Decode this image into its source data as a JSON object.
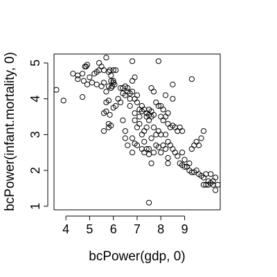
{
  "chart_data": {
    "type": "scatter",
    "title": "",
    "xlabel": "bcPower(gdp, 0)",
    "ylabel": "bcPower(infant.mortality, 0)",
    "xlim": [
      3.5,
      10.5
    ],
    "ylim": [
      0.9,
      5.25
    ],
    "x_ticks": [
      4,
      5,
      6,
      7,
      8,
      9
    ],
    "y_ticks": [
      1,
      2,
      3,
      4,
      5
    ],
    "grid": false,
    "legend": "none",
    "series": [
      {
        "marker": "open-circle",
        "color": "#000000",
        "points": [
          [
            3.6,
            4.25
          ],
          [
            3.9,
            3.95
          ],
          [
            4.3,
            4.7
          ],
          [
            4.5,
            4.65
          ],
          [
            4.5,
            4.55
          ],
          [
            4.7,
            4.7
          ],
          [
            4.8,
            4.9
          ],
          [
            4.75,
            4.5
          ],
          [
            4.85,
            4.9
          ],
          [
            4.9,
            4.95
          ],
          [
            4.7,
            4.05
          ],
          [
            4.9,
            4.4
          ],
          [
            5.0,
            4.6
          ],
          [
            5.1,
            4.45
          ],
          [
            5.2,
            4.7
          ],
          [
            5.3,
            4.75
          ],
          [
            5.4,
            4.8
          ],
          [
            5.4,
            5.0
          ],
          [
            5.5,
            4.9
          ],
          [
            5.6,
            4.8
          ],
          [
            5.7,
            5.15
          ],
          [
            5.8,
            4.75
          ],
          [
            5.85,
            4.8
          ],
          [
            5.9,
            4.65
          ],
          [
            5.9,
            4.5
          ],
          [
            6.0,
            4.5
          ],
          [
            6.0,
            4.45
          ],
          [
            5.95,
            4.35
          ],
          [
            5.9,
            4.3
          ],
          [
            6.0,
            4.8
          ],
          [
            6.1,
            4.8
          ],
          [
            6.05,
            4.4
          ],
          [
            5.3,
            4.4
          ],
          [
            5.5,
            4.35
          ],
          [
            5.6,
            4.45
          ],
          [
            5.8,
            4.35
          ],
          [
            5.7,
            4.2
          ],
          [
            5.6,
            3.6
          ],
          [
            5.7,
            3.65
          ],
          [
            5.85,
            3.55
          ],
          [
            5.8,
            3.3
          ],
          [
            5.6,
            3.1
          ],
          [
            5.8,
            3.2
          ],
          [
            5.9,
            3.25
          ],
          [
            5.7,
            3.9
          ],
          [
            5.8,
            3.95
          ],
          [
            6.0,
            3.75
          ],
          [
            6.1,
            3.8
          ],
          [
            6.3,
            4.3
          ],
          [
            6.5,
            4.35
          ],
          [
            6.4,
            4.15
          ],
          [
            6.5,
            4.1
          ],
          [
            6.6,
            4.2
          ],
          [
            6.7,
            4.15
          ],
          [
            6.8,
            4.2
          ],
          [
            6.7,
            4.0
          ],
          [
            6.9,
            4.0
          ],
          [
            6.8,
            4.5
          ],
          [
            6.9,
            4.6
          ],
          [
            7.0,
            4.1
          ],
          [
            7.0,
            3.9
          ],
          [
            7.1,
            3.7
          ],
          [
            7.2,
            3.8
          ],
          [
            7.2,
            3.65
          ],
          [
            7.3,
            3.7
          ],
          [
            7.4,
            3.6
          ],
          [
            7.5,
            3.7
          ],
          [
            7.6,
            3.65
          ],
          [
            7.7,
            3.55
          ],
          [
            7.6,
            3.5
          ],
          [
            7.5,
            3.55
          ],
          [
            7.4,
            3.5
          ],
          [
            7.6,
            4.3
          ],
          [
            7.7,
            4.2
          ],
          [
            7.8,
            3.9
          ],
          [
            7.9,
            3.8
          ],
          [
            8.0,
            3.8
          ],
          [
            8.1,
            3.7
          ],
          [
            8.0,
            3.5
          ],
          [
            8.1,
            3.4
          ],
          [
            8.2,
            3.5
          ],
          [
            8.3,
            3.3
          ],
          [
            8.4,
            3.2
          ],
          [
            8.5,
            3.25
          ],
          [
            8.6,
            3.2
          ],
          [
            8.7,
            3.1
          ],
          [
            8.8,
            3.2
          ],
          [
            8.9,
            3.1
          ],
          [
            8.5,
            4.4
          ],
          [
            8.5,
            4.0
          ],
          [
            8.2,
            3.0
          ],
          [
            8.3,
            2.8
          ],
          [
            8.4,
            2.7
          ],
          [
            8.5,
            2.6
          ],
          [
            8.6,
            2.5
          ],
          [
            8.7,
            2.4
          ],
          [
            8.8,
            2.2
          ],
          [
            8.9,
            2.15
          ],
          [
            9.0,
            2.1
          ],
          [
            9.1,
            2.1
          ],
          [
            9.2,
            2.0
          ],
          [
            9.3,
            1.95
          ],
          [
            9.4,
            1.95
          ],
          [
            9.5,
            2.0
          ],
          [
            9.6,
            1.9
          ],
          [
            9.7,
            1.85
          ],
          [
            9.8,
            1.8
          ],
          [
            9.9,
            1.9
          ],
          [
            10.0,
            1.7
          ],
          [
            10.1,
            1.65
          ],
          [
            10.2,
            1.6
          ],
          [
            10.3,
            1.8
          ],
          [
            10.1,
            1.9
          ],
          [
            10.0,
            1.6
          ],
          [
            9.8,
            1.6
          ],
          [
            9.9,
            1.6
          ],
          [
            10.3,
            1.45
          ],
          [
            10.4,
            1.6
          ],
          [
            10.2,
            1.7
          ],
          [
            9.0,
            2.3
          ],
          [
            9.2,
            2.2
          ],
          [
            9.3,
            2.6
          ],
          [
            9.4,
            2.7
          ],
          [
            9.5,
            2.8
          ],
          [
            9.6,
            2.7
          ],
          [
            9.7,
            2.9
          ],
          [
            9.8,
            3.1
          ],
          [
            9.3,
            4.55
          ],
          [
            8.9,
            2.5
          ],
          [
            6.4,
            3.4
          ],
          [
            6.5,
            3.1
          ],
          [
            6.5,
            2.9
          ],
          [
            6.6,
            2.7
          ],
          [
            6.8,
            2.9
          ],
          [
            6.9,
            2.75
          ],
          [
            7.0,
            3.2
          ],
          [
            7.1,
            3.3
          ],
          [
            7.2,
            3.0
          ],
          [
            7.3,
            3.1
          ],
          [
            7.3,
            2.8
          ],
          [
            7.4,
            2.6
          ],
          [
            7.5,
            2.6
          ],
          [
            7.5,
            2.45
          ],
          [
            7.6,
            2.2
          ],
          [
            7.7,
            2.5
          ],
          [
            7.8,
            2.7
          ],
          [
            7.9,
            2.65
          ],
          [
            8.0,
            2.5
          ],
          [
            8.1,
            2.7
          ],
          [
            8.2,
            2.6
          ],
          [
            8.3,
            2.35
          ],
          [
            8.3,
            2.2
          ],
          [
            7.6,
            2.9
          ],
          [
            7.8,
            3.0
          ],
          [
            7.9,
            3.1
          ],
          [
            8.0,
            3.0
          ],
          [
            7.2,
            2.6
          ],
          [
            7.3,
            2.5
          ],
          [
            7.0,
            2.7
          ],
          [
            6.8,
            2.5
          ],
          [
            7.4,
            3.2
          ],
          [
            7.5,
            3.4
          ],
          [
            7.1,
            3.5
          ],
          [
            6.9,
            3.6
          ],
          [
            6.7,
            3.8
          ],
          [
            7.9,
            5.05
          ],
          [
            6.8,
            5.05
          ],
          [
            7.5,
            1.1
          ],
          [
            6.3,
            3.9
          ],
          [
            6.2,
            4.0
          ],
          [
            6.4,
            4.3
          ],
          [
            6.6,
            4.3
          ],
          [
            6.9,
            3.4
          ],
          [
            7.7,
            3.2
          ],
          [
            8.2,
            4.1
          ],
          [
            8.3,
            3.6
          ]
        ]
      }
    ]
  }
}
